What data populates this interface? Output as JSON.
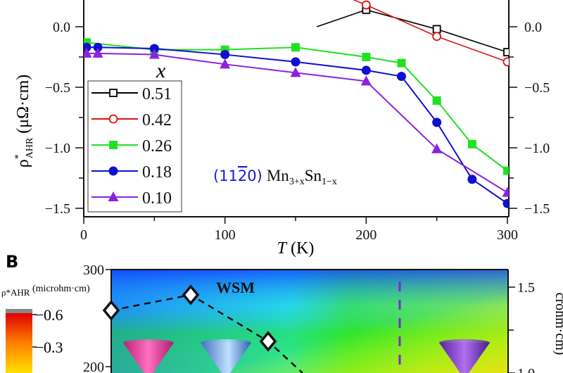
{
  "chart_data": [
    {
      "type": "line",
      "panel": "A",
      "xlabel": "T (K)",
      "ylabel": "ρ*AHR (μΩ·cm)",
      "xlim": [
        0,
        300
      ],
      "ylim": [
        -1.55,
        0.22
      ],
      "xticks": [
        "0",
        "100",
        "200",
        "300"
      ],
      "xtick_values": [
        0,
        100,
        200,
        300
      ],
      "yticks": [
        "0.0",
        "−0.5",
        "−1.0",
        "−1.5"
      ],
      "ytick_values": [
        0,
        -0.5,
        -1.0,
        -1.5
      ],
      "legend_title": "x",
      "legend_position": "bottom-left",
      "annotation": {
        "prefix": "(11",
        "bar": "2",
        "suffix": "0)",
        "formula": "Mn",
        "s1": "3+x",
        "mid": "Sn",
        "s2": "1−x"
      },
      "series": [
        {
          "name": "0.51",
          "color": "#000000",
          "marker": "open-square",
          "x": [
            165,
            200,
            250,
            300
          ],
          "y": [
            0.0,
            0.14,
            -0.02,
            -0.21
          ],
          "visible_markers": [
            1,
            2,
            3
          ]
        },
        {
          "name": "0.42",
          "color": "#e01010",
          "marker": "open-circle",
          "x": [
            175,
            200,
            250,
            300
          ],
          "y": [
            0.3,
            0.18,
            -0.08,
            -0.29
          ],
          "visible_markers": [
            1,
            2,
            3
          ]
        },
        {
          "name": "0.26",
          "color": "#22e022",
          "marker": "filled-square",
          "x": [
            2,
            50,
            100,
            150,
            200,
            225,
            250,
            275,
            300
          ],
          "y": [
            -0.13,
            -0.19,
            -0.19,
            -0.17,
            -0.25,
            -0.3,
            -0.61,
            -0.97,
            -1.19
          ]
        },
        {
          "name": "0.18",
          "color": "#1010d0",
          "marker": "filled-circle",
          "x": [
            2,
            10,
            50,
            100,
            150,
            200,
            225,
            250,
            275,
            300
          ],
          "y": [
            -0.17,
            -0.17,
            -0.18,
            -0.23,
            -0.29,
            -0.36,
            -0.41,
            -0.79,
            -1.26,
            -1.46
          ]
        },
        {
          "name": "0.10",
          "color": "#8a22e0",
          "marker": "filled-triangle",
          "x": [
            2,
            10,
            50,
            100,
            150,
            200,
            250,
            300
          ],
          "y": [
            -0.22,
            -0.22,
            -0.23,
            -0.31,
            -0.38,
            -0.45,
            -1.01,
            -1.37
          ]
        }
      ]
    },
    {
      "type": "heatmap",
      "panel": "B",
      "panel_label": "B",
      "yticks": [
        "300",
        "200"
      ],
      "right_yticks": [
        "1.5",
        "1.0"
      ],
      "right_ylabel": "crohm·cm)",
      "region_label": "WSM",
      "colorbar": {
        "label": "ρ*AHR",
        "unit": "(microhm·cm)",
        "ticks": [
          "0.6",
          "0.3"
        ]
      }
    }
  ]
}
